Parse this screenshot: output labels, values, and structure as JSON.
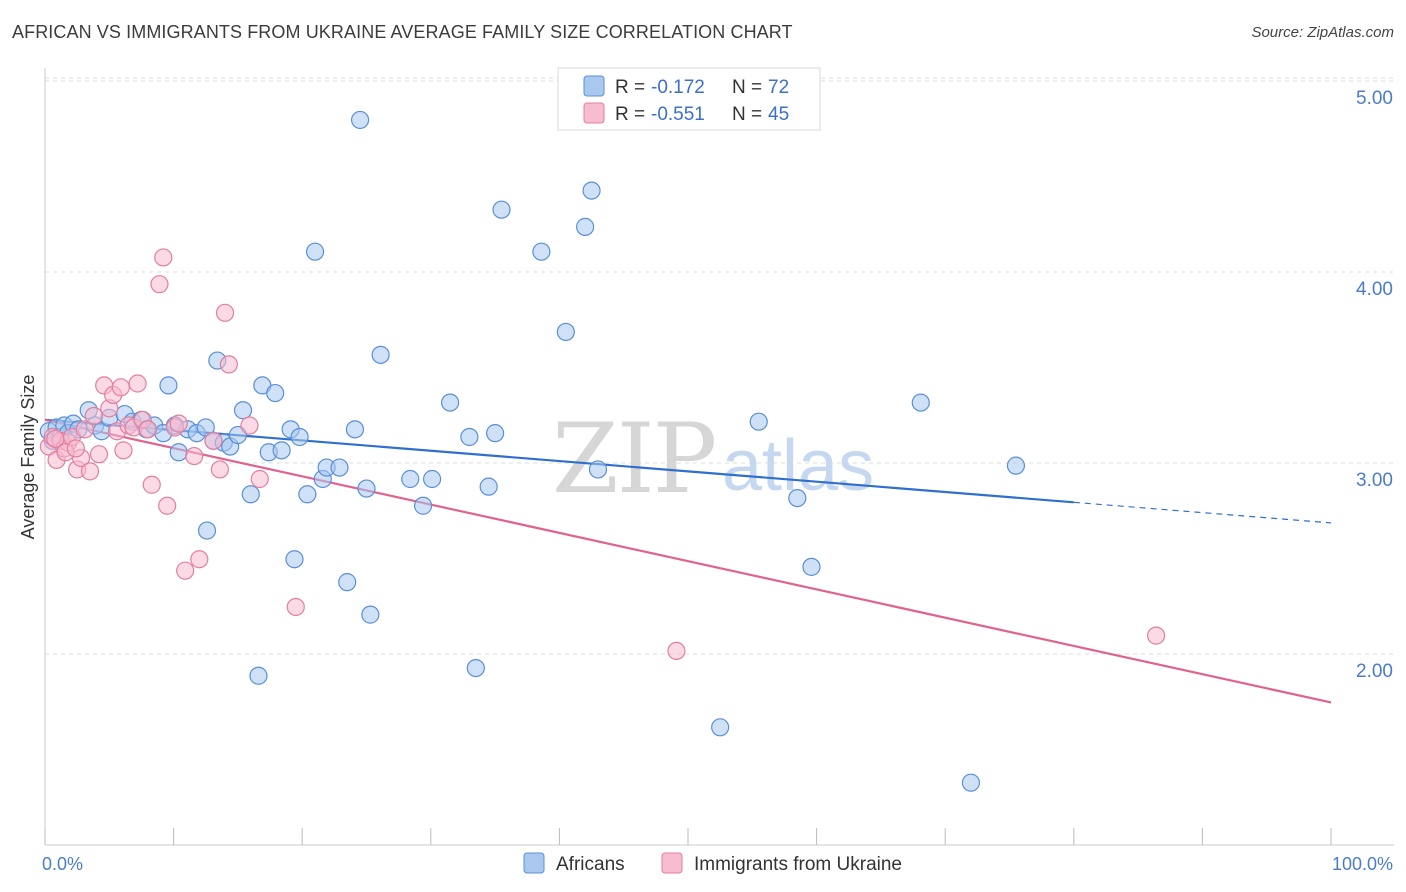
{
  "title": "AFRICAN VS IMMIGRANTS FROM UKRAINE AVERAGE FAMILY SIZE CORRELATION CHART",
  "source": "Source: ZipAtlas.com",
  "watermark": {
    "zip": "ZIP",
    "atlas": "atlas"
  },
  "colors": {
    "africans_fill": "#a8c8f0",
    "africans_stroke": "#5b8fd6",
    "africans_line": "#2f6fce",
    "ukraine_fill": "#f7bcd0",
    "ukraine_stroke": "#e27fa0",
    "ukraine_line": "#e0638f",
    "grid": "#dcdcdc",
    "axis_text": "#4a7ccc"
  },
  "legend": {
    "rows": [
      {
        "r_label": "R =",
        "r_value": "-0.172",
        "n_label": "N =",
        "n_value": "72"
      },
      {
        "r_label": "R =",
        "r_value": "-0.551",
        "n_label": "N =",
        "n_value": "45"
      }
    ]
  },
  "chart_data": {
    "type": "scatter",
    "title": "AFRICAN VS IMMIGRANTS FROM UKRAINE AVERAGE FAMILY SIZE CORRELATION CHART",
    "xlabel": "",
    "ylabel": "Average Family Size",
    "xlim": [
      0,
      100
    ],
    "ylim": [
      1.0,
      5.1
    ],
    "x_tick_labels": [
      "0.0%",
      "100.0%"
    ],
    "y_ticks": [
      2.0,
      3.0,
      4.0,
      5.0
    ],
    "y_tick_labels": [
      "2.00",
      "3.00",
      "4.00",
      "5.00"
    ],
    "legend_position": "top-center",
    "series": [
      {
        "name": "Africans",
        "R": -0.172,
        "N": 72,
        "trend": {
          "x0": 0,
          "y0": 3.31,
          "x1": 100,
          "y1": 2.77,
          "solid_until": 80
        },
        "points": [
          [
            0.3,
            3.25
          ],
          [
            0.6,
            3.2
          ],
          [
            0.9,
            3.27
          ],
          [
            1.2,
            3.22
          ],
          [
            1.5,
            3.28
          ],
          [
            1.8,
            3.24
          ],
          [
            2.2,
            3.29
          ],
          [
            2.6,
            3.26
          ],
          [
            3.4,
            3.36
          ],
          [
            3.9,
            3.28
          ],
          [
            4.4,
            3.25
          ],
          [
            5.0,
            3.32
          ],
          [
            6.2,
            3.34
          ],
          [
            6.8,
            3.3
          ],
          [
            7.5,
            3.31
          ],
          [
            7.9,
            3.26
          ],
          [
            8.5,
            3.28
          ],
          [
            9.2,
            3.24
          ],
          [
            9.6,
            3.49
          ],
          [
            10.1,
            3.28
          ],
          [
            10.4,
            3.14
          ],
          [
            11.1,
            3.26
          ],
          [
            11.8,
            3.24
          ],
          [
            12.5,
            3.27
          ],
          [
            12.6,
            2.73
          ],
          [
            13.1,
            3.2
          ],
          [
            13.4,
            3.62
          ],
          [
            13.9,
            3.19
          ],
          [
            14.4,
            3.17
          ],
          [
            15.0,
            3.23
          ],
          [
            15.4,
            3.36
          ],
          [
            16.0,
            2.92
          ],
          [
            16.6,
            1.97
          ],
          [
            16.9,
            3.49
          ],
          [
            17.4,
            3.14
          ],
          [
            17.9,
            3.45
          ],
          [
            18.4,
            3.15
          ],
          [
            19.1,
            3.26
          ],
          [
            19.4,
            2.58
          ],
          [
            19.8,
            3.22
          ],
          [
            20.4,
            2.92
          ],
          [
            21.0,
            4.19
          ],
          [
            21.6,
            3.0
          ],
          [
            21.9,
            3.06
          ],
          [
            22.9,
            3.06
          ],
          [
            23.5,
            2.46
          ],
          [
            24.1,
            3.26
          ],
          [
            24.5,
            4.88
          ],
          [
            25.0,
            2.95
          ],
          [
            25.3,
            2.29
          ],
          [
            26.1,
            3.65
          ],
          [
            28.4,
            3.0
          ],
          [
            29.4,
            2.86
          ],
          [
            30.1,
            3.0
          ],
          [
            31.5,
            3.4
          ],
          [
            33.0,
            3.22
          ],
          [
            33.5,
            2.01
          ],
          [
            34.5,
            2.96
          ],
          [
            35.0,
            3.24
          ],
          [
            35.5,
            4.41
          ],
          [
            38.6,
            4.19
          ],
          [
            40.5,
            3.77
          ],
          [
            42.0,
            4.32
          ],
          [
            42.5,
            4.51
          ],
          [
            43.0,
            3.05
          ],
          [
            52.5,
            1.7
          ],
          [
            55.5,
            3.3
          ],
          [
            58.5,
            2.9
          ],
          [
            59.6,
            2.54
          ],
          [
            68.1,
            3.4
          ],
          [
            72.0,
            1.41
          ],
          [
            75.5,
            3.07
          ]
        ]
      },
      {
        "name": "Immigrants from Ukraine",
        "R": -0.551,
        "N": 45,
        "trend": {
          "x0": 0,
          "y0": 3.31,
          "x1": 100,
          "y1": 1.83,
          "solid_until": 100
        },
        "points": [
          [
            0.3,
            3.17
          ],
          [
            0.6,
            3.22
          ],
          [
            0.9,
            3.1
          ],
          [
            1.2,
            3.2
          ],
          [
            1.5,
            3.16
          ],
          [
            1.8,
            3.19
          ],
          [
            2.1,
            3.22
          ],
          [
            2.5,
            3.05
          ],
          [
            2.8,
            3.11
          ],
          [
            3.1,
            3.26
          ],
          [
            3.5,
            3.04
          ],
          [
            3.8,
            3.33
          ],
          [
            4.2,
            3.13
          ],
          [
            4.6,
            3.49
          ],
          [
            5.0,
            3.37
          ],
          [
            5.3,
            3.44
          ],
          [
            5.6,
            3.25
          ],
          [
            5.9,
            3.48
          ],
          [
            6.1,
            3.15
          ],
          [
            6.5,
            3.28
          ],
          [
            6.9,
            3.27
          ],
          [
            7.2,
            3.5
          ],
          [
            7.6,
            3.31
          ],
          [
            8.0,
            3.26
          ],
          [
            8.3,
            2.97
          ],
          [
            8.9,
            4.02
          ],
          [
            9.2,
            4.16
          ],
          [
            9.5,
            2.86
          ],
          [
            10.1,
            3.27
          ],
          [
            10.4,
            3.29
          ],
          [
            10.9,
            2.52
          ],
          [
            11.6,
            3.12
          ],
          [
            12.0,
            2.58
          ],
          [
            13.1,
            3.2
          ],
          [
            13.6,
            3.05
          ],
          [
            14.0,
            3.87
          ],
          [
            14.3,
            3.6
          ],
          [
            15.9,
            3.28
          ],
          [
            16.7,
            3.0
          ],
          [
            19.5,
            2.33
          ],
          [
            49.1,
            2.1
          ],
          [
            86.4,
            2.18
          ],
          [
            0.8,
            3.21
          ],
          [
            1.6,
            3.14
          ],
          [
            2.4,
            3.16
          ]
        ]
      }
    ]
  }
}
